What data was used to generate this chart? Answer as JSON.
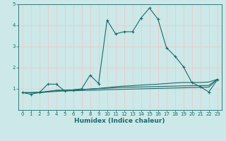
{
  "background_color": "#cce8e8",
  "grid_color": "#f0c8c8",
  "line_color": "#1a6b6b",
  "xlabel": "Humidex (Indice chaleur)",
  "xlim": [
    -0.5,
    23.5
  ],
  "ylim": [
    0,
    5
  ],
  "xticks": [
    0,
    1,
    2,
    3,
    4,
    5,
    6,
    7,
    8,
    9,
    10,
    11,
    12,
    13,
    14,
    15,
    16,
    17,
    18,
    19,
    20,
    21,
    22,
    23
  ],
  "yticks": [
    1,
    2,
    3,
    4,
    5
  ],
  "line1_x": [
    0,
    1,
    2,
    3,
    4,
    5,
    6,
    7,
    8,
    9,
    10,
    11,
    12,
    13,
    14,
    15,
    16,
    17,
    18,
    19,
    20,
    21,
    22,
    23
  ],
  "line1_y": [
    0.82,
    0.75,
    0.82,
    1.22,
    1.22,
    0.9,
    0.95,
    1.0,
    1.65,
    1.25,
    4.25,
    3.6,
    3.7,
    3.7,
    4.35,
    4.82,
    4.3,
    2.95,
    2.55,
    2.05,
    1.3,
    1.1,
    0.85,
    1.42
  ],
  "line2_x": [
    0,
    1,
    2,
    3,
    4,
    5,
    6,
    7,
    8,
    9,
    10,
    11,
    12,
    13,
    14,
    15,
    16,
    17,
    18,
    19,
    20,
    21,
    22,
    23
  ],
  "line2_y": [
    0.82,
    0.82,
    0.82,
    0.87,
    0.93,
    0.93,
    0.95,
    0.97,
    0.99,
    1.02,
    1.06,
    1.1,
    1.13,
    1.15,
    1.18,
    1.2,
    1.22,
    1.25,
    1.28,
    1.3,
    1.3,
    1.3,
    1.32,
    1.45
  ],
  "line3_x": [
    0,
    1,
    2,
    3,
    4,
    5,
    6,
    7,
    8,
    9,
    10,
    11,
    12,
    13,
    14,
    15,
    16,
    17,
    18,
    19,
    20,
    21,
    22,
    23
  ],
  "line3_y": [
    0.82,
    0.82,
    0.84,
    0.88,
    0.92,
    0.93,
    0.95,
    0.97,
    0.99,
    1.01,
    1.03,
    1.05,
    1.07,
    1.08,
    1.09,
    1.1,
    1.11,
    1.12,
    1.13,
    1.14,
    1.15,
    1.15,
    1.16,
    1.45
  ],
  "line4_x": [
    0,
    1,
    2,
    3,
    4,
    5,
    6,
    7,
    8,
    9,
    10,
    11,
    12,
    13,
    14,
    15,
    16,
    17,
    18,
    19,
    20,
    21,
    22,
    23
  ],
  "line4_y": [
    0.82,
    0.82,
    0.82,
    0.85,
    0.88,
    0.9,
    0.91,
    0.92,
    0.93,
    0.94,
    0.96,
    0.97,
    0.98,
    0.99,
    1.0,
    1.01,
    1.02,
    1.03,
    1.04,
    1.05,
    1.06,
    1.07,
    1.08,
    1.45
  ]
}
